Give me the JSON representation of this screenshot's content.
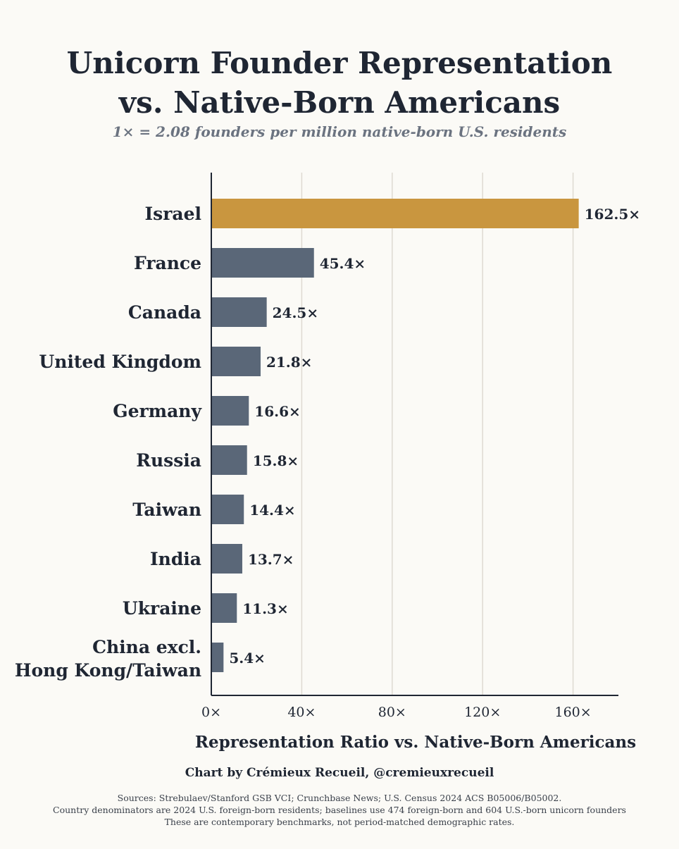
{
  "title_line1": "Unicorn Founder Representation",
  "title_line2": "vs. Native-Born Americans",
  "subtitle": "1× = 2.08 founders per million native-born U.S. residents",
  "credit": "Chart by Crémieux Recueil, @cremieuxrecueil",
  "sources": [
    "Sources: Strebulaev/Stanford GSB VCI; Crunchbase News; U.S. Census 2024 ACS B05006/B05002.",
    "Country denominators are 2024 U.S. foreign-born residents; baselines use 474 foreign-born and 604 U.S.-born unicorn founders",
    "These are contemporary benchmarks, not period-matched demographic rates."
  ],
  "colors": {
    "highlight": "#c9963f",
    "bar": "#5a6778",
    "grid": "#dedad2",
    "axis": "#1f2633"
  },
  "chart_data": {
    "type": "bar",
    "orientation": "horizontal",
    "xlabel": "Representation Ratio vs. Native-Born Americans",
    "ylabel": "",
    "xlim": [
      0,
      180
    ],
    "xticks": [
      0,
      40,
      80,
      120,
      160
    ],
    "xtick_labels": [
      "0×",
      "40×",
      "80×",
      "120×",
      "160×"
    ],
    "grid": "vertical",
    "categories": [
      "Israel",
      "France",
      "Canada",
      "United Kingdom",
      "Germany",
      "Russia",
      "Taiwan",
      "India",
      "Ukraine",
      "China excl.\nHong Kong/Taiwan"
    ],
    "values": [
      162.5,
      45.4,
      24.5,
      21.8,
      16.6,
      15.8,
      14.4,
      13.7,
      11.3,
      5.4
    ],
    "value_labels": [
      "162.5×",
      "45.4×",
      "24.5×",
      "21.8×",
      "16.6×",
      "15.8×",
      "14.4×",
      "13.7×",
      "11.3×",
      "5.4×"
    ],
    "highlight_index": 0
  }
}
